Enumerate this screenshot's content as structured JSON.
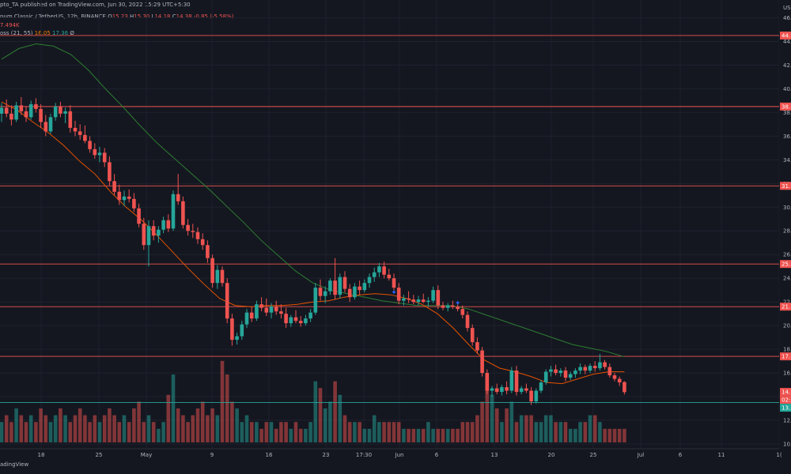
{
  "header": {
    "published": "pto_TA published on TradingView.com, Jun 30, 2022 15:29 UTC+5:30",
    "symbol": "num Classic / TetherUS, 12h, BINANCE",
    "ohlc": {
      "o_label": "O",
      "o": "15.23",
      "h_label": "H",
      "h": "15.30",
      "l_label": "L",
      "l": "14.18",
      "c_label": "C",
      "c": "14.38",
      "change": "-0.85 (-5.58%)"
    },
    "volume": "7.494K",
    "indicator": {
      "name": "oss (21, 55)",
      "ma1": "16.05",
      "ma2": "17.36",
      "zero": "Ø"
    }
  },
  "price_axis": {
    "currency": "USD",
    "ticks": [
      "46.",
      "44.",
      "42.",
      "40.",
      "38.",
      "36.",
      "34.",
      "32.",
      "30.",
      "28.",
      "26.",
      "24.",
      "22.",
      "20.",
      "18.",
      "16.",
      "14.",
      "12.",
      "10."
    ],
    "badges": [
      {
        "price": 44.5,
        "label": "44.",
        "color": "#ef5350"
      },
      {
        "price": 38.5,
        "label": "38.",
        "color": "#ef5350"
      },
      {
        "price": 31.8,
        "label": "31.",
        "color": "#ef5350"
      },
      {
        "price": 25.2,
        "label": "25.",
        "color": "#ef5350"
      },
      {
        "price": 21.6,
        "label": "21.",
        "color": "#ef5350"
      },
      {
        "price": 17.4,
        "label": "17.",
        "color": "#ef5350"
      },
      {
        "price": 14.4,
        "label": "14.",
        "color": "#ef5350"
      },
      {
        "price": 14.4,
        "label": "02:",
        "color": "#ef5350"
      },
      {
        "price": 13.5,
        "label": "13.",
        "color": "#26a69a"
      }
    ]
  },
  "time_axis": [
    "18",
    "25",
    "May",
    "9",
    "16",
    "23",
    "17:30",
    "Jun",
    "6",
    "13",
    "20",
    "25",
    "Jul",
    "6",
    "11",
    "1("
  ],
  "footer": "adingView",
  "chart_data": {
    "type": "candlestick",
    "symbol": "Ethereum Classic / TetherUS",
    "interval": "12h",
    "exchange": "BINANCE",
    "candles": [
      [
        37.9,
        38.8,
        37.2,
        38.4
      ],
      [
        38.4,
        39.1,
        37.6,
        37.9
      ],
      [
        37.9,
        38.6,
        36.9,
        37.4
      ],
      [
        37.4,
        38.9,
        37.2,
        38.6
      ],
      [
        38.6,
        39.3,
        37.8,
        38.1
      ],
      [
        38.1,
        38.5,
        37.2,
        37.6
      ],
      [
        37.6,
        39.0,
        37.4,
        38.7
      ],
      [
        38.7,
        39.2,
        38.0,
        38.3
      ],
      [
        38.3,
        38.7,
        36.7,
        37.2
      ],
      [
        37.2,
        37.8,
        36.0,
        36.4
      ],
      [
        36.4,
        37.9,
        36.2,
        37.6
      ],
      [
        37.6,
        38.8,
        37.3,
        38.5
      ],
      [
        38.5,
        38.9,
        37.6,
        37.9
      ],
      [
        37.9,
        38.4,
        37.1,
        38.1
      ],
      [
        38.1,
        38.6,
        36.3,
        36.7
      ],
      [
        36.7,
        37.3,
        36.0,
        36.4
      ],
      [
        36.4,
        37.0,
        35.7,
        36.1
      ],
      [
        36.1,
        36.9,
        35.4,
        35.6
      ],
      [
        35.6,
        36.0,
        34.6,
        34.9
      ],
      [
        34.9,
        35.4,
        34.1,
        34.4
      ],
      [
        34.4,
        35.1,
        33.8,
        34.6
      ],
      [
        34.6,
        35.0,
        33.4,
        33.8
      ],
      [
        33.8,
        34.3,
        31.8,
        32.2
      ],
      [
        32.2,
        32.8,
        31.0,
        31.3
      ],
      [
        31.3,
        31.9,
        30.2,
        30.6
      ],
      [
        30.6,
        31.4,
        30.1,
        30.9
      ],
      [
        30.9,
        31.5,
        30.4,
        30.7
      ],
      [
        30.7,
        31.2,
        29.6,
        29.9
      ],
      [
        29.9,
        30.3,
        28.3,
        28.6
      ],
      [
        28.6,
        29.1,
        26.4,
        26.8
      ],
      [
        26.8,
        28.9,
        25.0,
        28.4
      ],
      [
        28.4,
        28.9,
        27.2,
        27.6
      ],
      [
        27.6,
        28.4,
        27.0,
        28.1
      ],
      [
        28.1,
        29.2,
        27.8,
        28.9
      ],
      [
        28.9,
        29.4,
        27.9,
        28.2
      ],
      [
        28.2,
        31.4,
        28.0,
        31.1
      ],
      [
        31.1,
        32.8,
        30.2,
        30.5
      ],
      [
        30.5,
        30.9,
        28.2,
        28.5
      ],
      [
        28.5,
        29.0,
        27.6,
        28.0
      ],
      [
        28.0,
        28.6,
        27.4,
        27.9
      ],
      [
        27.9,
        28.3,
        26.9,
        27.3
      ],
      [
        27.3,
        27.8,
        26.4,
        26.8
      ],
      [
        26.8,
        27.2,
        25.3,
        25.7
      ],
      [
        25.7,
        26.0,
        23.2,
        23.6
      ],
      [
        23.6,
        25.1,
        23.1,
        24.7
      ],
      [
        24.7,
        25.0,
        23.3,
        23.6
      ],
      [
        23.6,
        24.0,
        20.2,
        20.6
      ],
      [
        20.6,
        21.0,
        18.3,
        18.8
      ],
      [
        18.8,
        19.4,
        18.4,
        19.1
      ],
      [
        19.1,
        20.4,
        18.8,
        20.1
      ],
      [
        20.1,
        21.4,
        19.8,
        21.1
      ],
      [
        21.1,
        21.6,
        20.3,
        20.6
      ],
      [
        20.6,
        22.1,
        20.4,
        21.8
      ],
      [
        21.8,
        22.4,
        21.2,
        21.5
      ],
      [
        21.5,
        22.3,
        20.8,
        21.1
      ],
      [
        21.1,
        21.9,
        20.6,
        21.6
      ],
      [
        21.6,
        22.1,
        20.9,
        21.2
      ],
      [
        21.2,
        21.8,
        20.6,
        21.0
      ],
      [
        21.0,
        21.5,
        19.8,
        20.2
      ],
      [
        20.2,
        20.9,
        19.9,
        20.7
      ],
      [
        20.7,
        21.3,
        20.2,
        20.4
      ],
      [
        20.4,
        20.8,
        19.9,
        20.2
      ],
      [
        20.2,
        20.9,
        20.0,
        20.6
      ],
      [
        20.6,
        21.4,
        20.3,
        21.1
      ],
      [
        21.1,
        23.6,
        20.9,
        23.2
      ],
      [
        23.2,
        23.9,
        22.1,
        22.5
      ],
      [
        22.5,
        23.3,
        21.9,
        22.9
      ],
      [
        22.9,
        24.0,
        22.6,
        23.8
      ],
      [
        23.8,
        25.7,
        22.2,
        22.6
      ],
      [
        22.6,
        24.4,
        22.3,
        24.1
      ],
      [
        24.1,
        24.6,
        22.8,
        23.1
      ],
      [
        23.1,
        23.5,
        22.0,
        22.4
      ],
      [
        22.4,
        23.6,
        22.2,
        23.3
      ],
      [
        23.3,
        23.8,
        22.6,
        23.0
      ],
      [
        23.0,
        23.9,
        22.8,
        23.6
      ],
      [
        23.6,
        24.4,
        23.2,
        24.1
      ],
      [
        24.1,
        24.9,
        23.7,
        24.5
      ],
      [
        24.5,
        25.3,
        24.1,
        25.0
      ],
      [
        25.0,
        25.4,
        24.0,
        24.3
      ],
      [
        24.3,
        24.8,
        23.8,
        24.0
      ],
      [
        24.0,
        24.4,
        22.9,
        23.2
      ],
      [
        23.2,
        23.6,
        21.8,
        22.1
      ],
      [
        22.1,
        22.6,
        21.7,
        22.3
      ],
      [
        22.3,
        22.9,
        21.9,
        22.2
      ],
      [
        22.2,
        22.6,
        21.8,
        22.0
      ],
      [
        22.0,
        22.5,
        21.7,
        22.2
      ],
      [
        22.2,
        22.7,
        21.9,
        22.0
      ],
      [
        22.0,
        22.4,
        21.6,
        22.1
      ],
      [
        22.1,
        23.3,
        21.9,
        23.0
      ],
      [
        23.0,
        23.4,
        21.4,
        21.7
      ],
      [
        21.7,
        22.0,
        21.3,
        21.5
      ],
      [
        21.5,
        21.9,
        21.2,
        21.7
      ],
      [
        21.7,
        22.1,
        21.4,
        21.6
      ],
      [
        21.6,
        21.9,
        21.2,
        21.4
      ],
      [
        21.4,
        21.7,
        20.6,
        20.9
      ],
      [
        20.9,
        21.2,
        19.5,
        19.8
      ],
      [
        19.8,
        20.1,
        18.3,
        18.6
      ],
      [
        18.6,
        19.0,
        17.6,
        17.9
      ],
      [
        17.9,
        18.2,
        15.7,
        16.0
      ],
      [
        16.0,
        16.3,
        14.2,
        14.5
      ],
      [
        14.5,
        14.9,
        14.0,
        14.7
      ],
      [
        14.7,
        15.1,
        14.2,
        14.4
      ],
      [
        14.4,
        15.0,
        14.1,
        14.8
      ],
      [
        14.8,
        15.3,
        14.2,
        14.5
      ],
      [
        14.5,
        16.5,
        14.3,
        16.2
      ],
      [
        16.2,
        16.6,
        14.1,
        14.4
      ],
      [
        14.4,
        14.9,
        14.2,
        14.7
      ],
      [
        14.7,
        15.1,
        14.3,
        14.5
      ],
      [
        14.5,
        14.8,
        13.3,
        13.6
      ],
      [
        13.6,
        14.7,
        13.4,
        14.5
      ],
      [
        14.5,
        15.4,
        14.3,
        15.2
      ],
      [
        15.2,
        16.3,
        15.0,
        16.1
      ],
      [
        16.1,
        16.6,
        15.7,
        16.3
      ],
      [
        16.3,
        16.7,
        15.8,
        16.0
      ],
      [
        16.0,
        16.4,
        15.7,
        16.2
      ],
      [
        16.2,
        16.5,
        15.3,
        15.6
      ],
      [
        15.6,
        16.1,
        15.4,
        15.9
      ],
      [
        15.9,
        16.4,
        15.6,
        16.2
      ],
      [
        16.2,
        16.8,
        15.9,
        16.5
      ],
      [
        16.5,
        16.7,
        15.9,
        16.2
      ],
      [
        16.2,
        16.8,
        16.0,
        16.6
      ],
      [
        16.6,
        17.0,
        16.1,
        16.4
      ],
      [
        16.4,
        17.6,
        16.2,
        16.9
      ],
      [
        16.9,
        17.1,
        16.3,
        16.5
      ],
      [
        16.5,
        16.8,
        15.6,
        15.8
      ],
      [
        15.8,
        16.0,
        15.3,
        15.5
      ],
      [
        15.5,
        15.7,
        14.9,
        15.2
      ],
      [
        15.23,
        15.3,
        14.18,
        14.38
      ]
    ],
    "volume": [
      3,
      4,
      3,
      5,
      4,
      3,
      4,
      3,
      5,
      4,
      3,
      4,
      5,
      4,
      3,
      4,
      5,
      4,
      3,
      4,
      3,
      4,
      5,
      4,
      3,
      4,
      3,
      5,
      6,
      3,
      4,
      3,
      2,
      3,
      7,
      10,
      5,
      4,
      3,
      4,
      5,
      6,
      4,
      5,
      4,
      12,
      10,
      6,
      5,
      3,
      4,
      3,
      3,
      2,
      3,
      3,
      2,
      3,
      3,
      2,
      3,
      2,
      2,
      3,
      9,
      8,
      5,
      6,
      9,
      7,
      4,
      3,
      3,
      3,
      2,
      2,
      4,
      3,
      3,
      3,
      3,
      3,
      2,
      2,
      2,
      2,
      2,
      3,
      2,
      2,
      2,
      2,
      2,
      2,
      3,
      3,
      3,
      4,
      6,
      9,
      7,
      5,
      3,
      5,
      6,
      3,
      4,
      4,
      4,
      3,
      3,
      4,
      4,
      3,
      3,
      3,
      2,
      2,
      3,
      3,
      4,
      4,
      3,
      2,
      2,
      2,
      2,
      2,
      2
    ],
    "ma_fast": {
      "name": "21",
      "start_index": 0,
      "values": [
        38.9,
        38.2,
        37.2,
        36.3,
        35.2,
        33.9,
        32.8,
        31.3,
        30.0,
        28.9,
        27.6,
        26.2,
        24.8,
        23.5,
        22.3,
        21.7,
        21.6,
        21.7,
        21.7,
        21.8,
        22.0,
        22.1,
        22.4,
        22.6,
        22.7,
        22.6,
        22.3,
        21.8,
        21.0,
        19.8,
        18.4,
        17.1,
        16.4,
        16.1,
        15.7,
        15.2,
        15.1,
        15.5,
        15.9,
        16.1,
        16.1
      ]
    },
    "ma_slow": {
      "name": "55",
      "start_index": 0,
      "values": [
        42.5,
        43.4,
        43.8,
        43.6,
        42.9,
        41.6,
        40.0,
        38.5,
        36.9,
        35.4,
        34.1,
        32.8,
        31.5,
        30.1,
        28.7,
        27.2,
        25.9,
        24.6,
        23.6,
        23.0,
        22.7,
        22.4,
        22.1,
        21.9,
        21.7,
        21.7,
        21.7,
        21.4,
        20.9,
        20.4,
        19.9,
        19.4,
        18.9,
        18.4,
        18.1,
        17.8,
        17.36
      ]
    },
    "cross_markers": [
      {
        "index": 80,
        "price": 22.8
      },
      {
        "index": 93,
        "price": 21.9
      }
    ],
    "horizontal_lines": [
      44.5,
      38.5,
      31.8,
      25.2,
      21.6,
      17.4,
      13.5
    ],
    "y_range": [
      9.6,
      47.5
    ]
  }
}
